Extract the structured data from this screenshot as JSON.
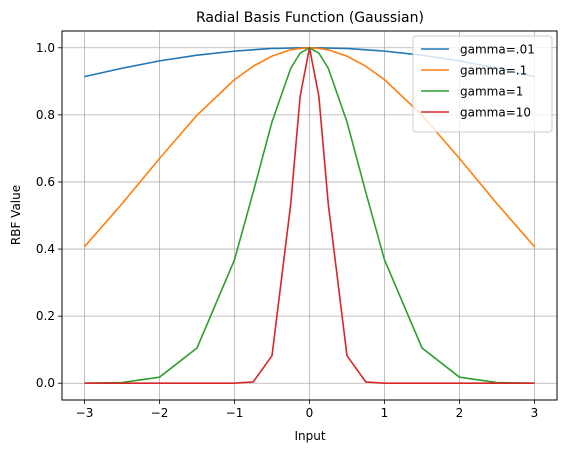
{
  "chart_data": {
    "type": "line",
    "title": "Radial Basis Function (Gaussian)",
    "xlabel": "Input",
    "ylabel": "RBF Value",
    "xlim": [
      -3.3,
      3.3
    ],
    "ylim": [
      -0.05,
      1.05
    ],
    "x_ticks": [
      -3,
      -2,
      -1,
      0,
      1,
      2,
      3
    ],
    "x_tick_labels": [
      "−3",
      "−2",
      "−1",
      "0",
      "1",
      "2",
      "3"
    ],
    "y_ticks": [
      0.0,
      0.2,
      0.4,
      0.6,
      0.8,
      1.0
    ],
    "y_tick_labels": [
      "0.0",
      "0.2",
      "0.4",
      "0.6",
      "0.8",
      "1.0"
    ],
    "grid": true,
    "legend_position": "top-right",
    "x": [
      -3,
      -2.5,
      -2,
      -1.5,
      -1,
      -0.75,
      -0.5,
      -0.25,
      -0.125,
      0,
      0.125,
      0.25,
      0.5,
      0.75,
      1,
      1.5,
      2,
      2.5,
      3
    ],
    "series": [
      {
        "name": "gamma=.01",
        "color": "#1f77b4",
        "values": [
          0.914,
          0.939,
          0.961,
          0.978,
          0.99,
          0.994,
          0.998,
          0.999,
          1.0,
          1.0,
          1.0,
          0.999,
          0.998,
          0.994,
          0.99,
          0.978,
          0.961,
          0.939,
          0.914
        ]
      },
      {
        "name": "gamma=.1",
        "color": "#ff7f0e",
        "values": [
          0.407,
          0.535,
          0.67,
          0.799,
          0.905,
          0.945,
          0.975,
          0.994,
          0.998,
          1.0,
          0.998,
          0.994,
          0.975,
          0.945,
          0.905,
          0.799,
          0.67,
          0.535,
          0.407
        ]
      },
      {
        "name": "gamma=1",
        "color": "#2ca02c",
        "values": [
          0.0001,
          0.002,
          0.018,
          0.105,
          0.368,
          0.57,
          0.779,
          0.939,
          0.984,
          1.0,
          0.984,
          0.939,
          0.779,
          0.57,
          0.368,
          0.105,
          0.018,
          0.002,
          0.0001
        ]
      },
      {
        "name": "gamma=10",
        "color": "#d62728",
        "values": [
          0.0,
          0.0,
          0.0,
          0.0,
          0.0,
          0.004,
          0.082,
          0.535,
          0.855,
          1.0,
          0.855,
          0.535,
          0.082,
          0.004,
          0.0,
          0.0,
          0.0,
          0.0,
          0.0
        ]
      }
    ]
  }
}
